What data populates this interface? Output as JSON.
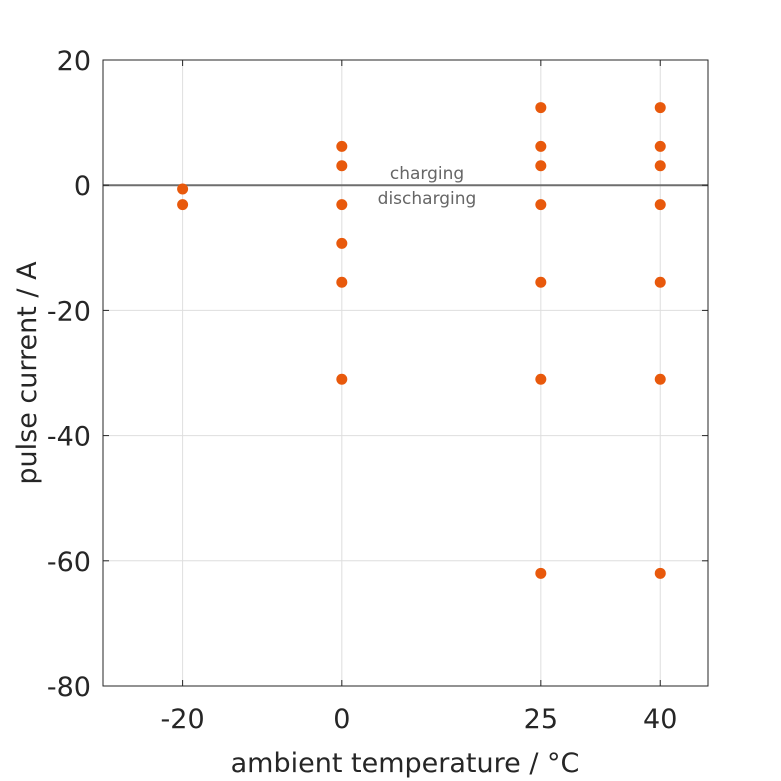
{
  "chart_data": {
    "type": "scatter",
    "xlabel": "ambient temperature / °C",
    "ylabel": "pulse current / A",
    "xlim": [
      -30,
      46
    ],
    "ylim": [
      -80,
      20
    ],
    "xticks": [
      -20,
      0,
      25,
      40
    ],
    "xtick_labels": [
      "-20",
      "0",
      "25",
      "40"
    ],
    "yticks": [
      20,
      0,
      -20,
      -40,
      -60,
      -80
    ],
    "ytick_labels": [
      "20",
      "0",
      "-20",
      "-40",
      "-60",
      "-80"
    ],
    "grid": true,
    "reference_line_y": 0,
    "annotations": {
      "above_line": "charging",
      "below_line": "discharging"
    },
    "colors": {
      "points": "#e8590c",
      "reference_line": "#6e6e6e",
      "grid": "#dedede",
      "axes": "#262626"
    },
    "points": [
      {
        "x": -20,
        "y": -0.6
      },
      {
        "x": -20,
        "y": -3.1
      },
      {
        "x": 0,
        "y": 6.2
      },
      {
        "x": 0,
        "y": 3.1
      },
      {
        "x": 0,
        "y": -3.1
      },
      {
        "x": 0,
        "y": -9.3
      },
      {
        "x": 0,
        "y": -15.5
      },
      {
        "x": 0,
        "y": -31
      },
      {
        "x": 25,
        "y": 12.4
      },
      {
        "x": 25,
        "y": 6.2
      },
      {
        "x": 25,
        "y": 3.1
      },
      {
        "x": 25,
        "y": -3.1
      },
      {
        "x": 25,
        "y": -15.5
      },
      {
        "x": 25,
        "y": -31
      },
      {
        "x": 25,
        "y": -62
      },
      {
        "x": 40,
        "y": 12.4
      },
      {
        "x": 40,
        "y": 6.2
      },
      {
        "x": 40,
        "y": 3.1
      },
      {
        "x": 40,
        "y": -3.1
      },
      {
        "x": 40,
        "y": -15.5
      },
      {
        "x": 40,
        "y": -31
      },
      {
        "x": 40,
        "y": -62
      }
    ]
  }
}
